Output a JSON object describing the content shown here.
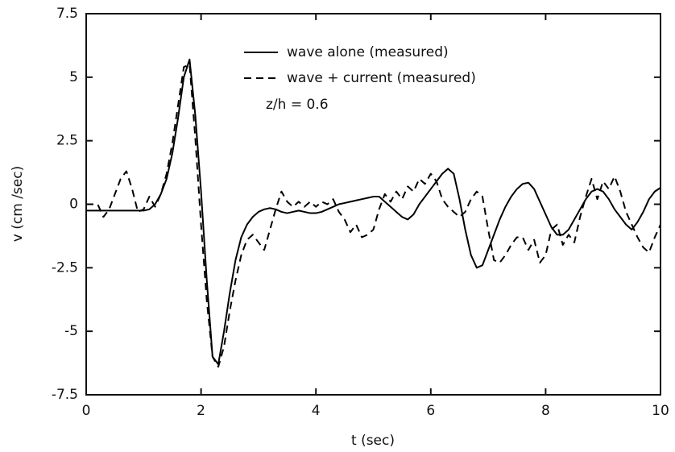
{
  "chart_data": {
    "type": "line",
    "x_label": "t (sec)",
    "y_label": "v (cm /sec)",
    "annotation": "z/h = 0.6",
    "x": [
      0,
      0.1,
      0.2,
      0.3,
      0.4,
      0.5,
      0.6,
      0.7,
      0.8,
      0.9,
      1,
      1.1,
      1.2,
      1.3,
      1.4,
      1.5,
      1.6,
      1.7,
      1.8,
      1.9,
      2,
      2.1,
      2.2,
      2.3,
      2.4,
      2.5,
      2.6,
      2.7,
      2.8,
      2.9,
      3,
      3.1,
      3.2,
      3.3,
      3.4,
      3.5,
      3.6,
      3.7,
      3.8,
      3.9,
      4,
      4.1,
      4.2,
      4.3,
      4.4,
      4.5,
      4.6,
      4.7,
      4.8,
      4.9,
      5,
      5.1,
      5.2,
      5.3,
      5.4,
      5.5,
      5.6,
      5.7,
      5.8,
      5.9,
      6,
      6.1,
      6.2,
      6.3,
      6.4,
      6.5,
      6.6,
      6.7,
      6.8,
      6.9,
      7,
      7.1,
      7.2,
      7.3,
      7.4,
      7.5,
      7.6,
      7.7,
      7.8,
      7.9,
      8,
      8.1,
      8.2,
      8.3,
      8.4,
      8.5,
      8.6,
      8.7,
      8.8,
      8.9,
      9,
      9.1,
      9.2,
      9.3,
      9.4,
      9.5,
      9.6,
      9.7,
      9.8,
      9.9,
      10
    ],
    "series": [
      {
        "name": "wave alone (measured)",
        "color": "#000000",
        "line_style": "solid",
        "values": [
          -0.25,
          -0.25,
          -0.25,
          -0.25,
          -0.25,
          -0.25,
          -0.25,
          -0.25,
          -0.25,
          -0.25,
          -0.25,
          -0.2,
          0,
          0.4,
          1.0,
          2.0,
          3.4,
          5.0,
          5.7,
          3.5,
          0.5,
          -3,
          -6.0,
          -6.3,
          -5,
          -3.5,
          -2.2,
          -1.3,
          -0.8,
          -0.5,
          -0.3,
          -0.2,
          -0.15,
          -0.2,
          -0.3,
          -0.35,
          -0.3,
          -0.25,
          -0.3,
          -0.35,
          -0.35,
          -0.3,
          -0.2,
          -0.1,
          0,
          0.05,
          0.1,
          0.15,
          0.2,
          0.25,
          0.3,
          0.3,
          0.1,
          -0.1,
          -0.3,
          -0.5,
          -0.6,
          -0.4,
          0,
          0.3,
          0.6,
          0.9,
          1.2,
          1.4,
          1.2,
          0.2,
          -1.0,
          -2.0,
          -2.5,
          -2.4,
          -1.8,
          -1.2,
          -0.6,
          -0.1,
          0.3,
          0.6,
          0.8,
          0.85,
          0.6,
          0.1,
          -0.4,
          -0.9,
          -1.2,
          -1.2,
          -1.0,
          -0.6,
          -0.2,
          0.2,
          0.5,
          0.6,
          0.5,
          0.2,
          -0.2,
          -0.5,
          -0.8,
          -1.0,
          -0.7,
          -0.3,
          0.2,
          0.5,
          0.65
        ]
      },
      {
        "name": "wave + current (measured)",
        "color": "#000000",
        "line_style": "dashed",
        "values": [
          0,
          0,
          0,
          -0.5,
          -0.2,
          0.4,
          1.0,
          1.3,
          0.6,
          -0.3,
          -0.2,
          0.3,
          -0.1,
          0.4,
          1.2,
          2.4,
          3.9,
          5.4,
          5.5,
          2.6,
          -0.8,
          -3.8,
          -6.0,
          -6.4,
          -5.6,
          -4.2,
          -3.0,
          -2.0,
          -1.4,
          -1.2,
          -1.5,
          -1.8,
          -1.0,
          -0.2,
          0.5,
          0.1,
          -0.1,
          0.1,
          -0.1,
          0.1,
          -0.1,
          0.1,
          0,
          0.2,
          -0.3,
          -0.6,
          -1.1,
          -0.8,
          -1.3,
          -1.2,
          -1.0,
          -0.2,
          0.4,
          0.1,
          0.5,
          0.2,
          0.7,
          0.5,
          1.0,
          0.8,
          1.2,
          0.9,
          0.2,
          -0.1,
          -0.3,
          -0.5,
          -0.3,
          0.2,
          0.5,
          0.3,
          -1.0,
          -2.2,
          -2.3,
          -2.0,
          -1.6,
          -1.3,
          -1.3,
          -1.8,
          -1.4,
          -2.3,
          -2.0,
          -1.0,
          -0.8,
          -1.6,
          -1.2,
          -1.5,
          -0.5,
          0.3,
          1.0,
          0.2,
          0.9,
          0.6,
          1.1,
          0.5,
          -0.3,
          -0.8,
          -1.3,
          -1.7,
          -1.9,
          -1.3,
          -0.8
        ]
      }
    ],
    "xlim": [
      0,
      10
    ],
    "xticks": [
      0,
      2,
      4,
      6,
      8,
      10
    ],
    "ylim": [
      -7.5,
      7.5
    ],
    "yticks": [
      -7.5,
      -5,
      -2.5,
      0,
      2.5,
      5,
      7.5
    ],
    "grid": false
  }
}
